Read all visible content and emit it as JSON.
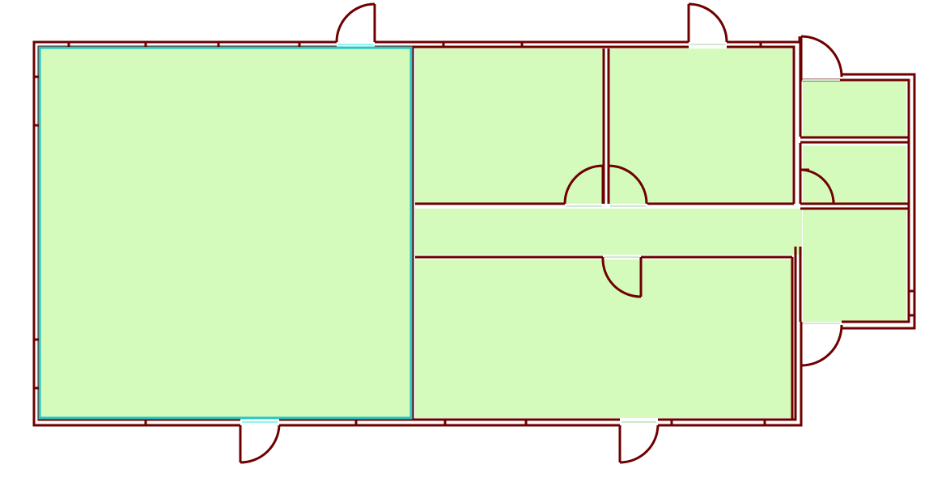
{
  "colors": {
    "background": "#ffffff",
    "room_fill": "#d4fbbb",
    "wall": "#6e0000",
    "selection": "#25c6c4",
    "opening": "#cfe8cf",
    "selected_opening": "#8ff6f2"
  },
  "rooms": [
    {
      "id": "room-large-left",
      "selected": true
    },
    {
      "id": "room-upper-middle",
      "selected": false
    },
    {
      "id": "room-upper-right",
      "selected": false
    },
    {
      "id": "room-east-top",
      "selected": false
    },
    {
      "id": "room-east-middle",
      "selected": false
    },
    {
      "id": "corridor",
      "selected": false
    },
    {
      "id": "room-lower-middle",
      "selected": false
    },
    {
      "id": "room-east-bottom",
      "selected": false
    }
  ],
  "doors": [
    {
      "id": "door-north-left",
      "swing": "top"
    },
    {
      "id": "door-north-right",
      "swing": "top"
    },
    {
      "id": "door-east-wing-top",
      "swing": "top"
    },
    {
      "id": "door-upper-middle-room",
      "swing": "up"
    },
    {
      "id": "door-upper-right-room",
      "swing": "up"
    },
    {
      "id": "door-east-middle-room",
      "swing": "in"
    },
    {
      "id": "door-lower-middle-room",
      "swing": "down"
    },
    {
      "id": "door-east-wing-bottom",
      "swing": "out"
    },
    {
      "id": "door-south-left",
      "swing": "bottom"
    },
    {
      "id": "door-south-right",
      "swing": "bottom"
    }
  ]
}
